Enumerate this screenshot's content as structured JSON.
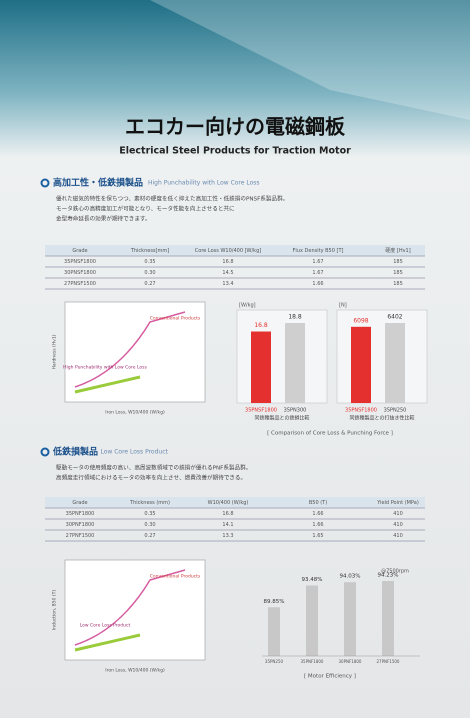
{
  "header": {
    "title": "エコカー向けの電磁鋼板",
    "subtitle": "Electrical Steel Products for Traction Motor"
  },
  "sections": [
    {
      "title": "高加工性・低鉄損製品",
      "subtitle": "High Punchability with Low Core Loss",
      "bullets": [
        "優れた磁気的特性を保ちつつ、素材の硬度を低く抑えた高加工性・低鉄損のPNSF系製品群。",
        "モータ鉄心の高精度加工が可能となり、モータ性能を向上させると共に",
        "金型寿命延長の効果が期待できます。"
      ],
      "table": {
        "header": [
          "Grade",
          "Thickness[mm]",
          "Core Loss W10/400 [W/kg]",
          "Flux Density B50 [T]",
          "硬度 [Hv1]"
        ],
        "rows": [
          [
            "35PNSF1800",
            "0.35",
            "16.8",
            "1.67",
            "185"
          ],
          [
            "30PNSF1800",
            "0.30",
            "14.5",
            "1.67",
            "185"
          ],
          [
            "27PNSF1500",
            "0.27",
            "13.4",
            "1.66",
            "185"
          ]
        ]
      },
      "plot": {
        "x_label": "Iron Loss, W10/400 (W/kg)",
        "y_label": "Hardness (Hv1)",
        "labels": [
          "Conventional Products",
          "High Punchability with Low Core Loss"
        ]
      },
      "bar_charts": [
        {
          "unit": "[W/kg]",
          "categories": [
            "35PNSF1800",
            "35PN300"
          ],
          "values": [
            16.8,
            18.8
          ],
          "colors": [
            "#e53030",
            "#cfcfcf"
          ],
          "caption": "同鉄種製品との鉄損比較"
        },
        {
          "unit": "[N]",
          "categories": [
            "35PNSF1800",
            "35PN250"
          ],
          "values": [
            6098,
            6402
          ],
          "colors": [
            "#e53030",
            "#cfcfcf"
          ],
          "caption": "同鉄種製品との打抜き性比較"
        }
      ],
      "bar_caption": "[ Comparison of Core Loss & Punching Force ]"
    },
    {
      "title": "低鉄損製品",
      "subtitle": "Low Core Loss Product",
      "bullets": [
        "駆動モータの使用頻度の高い、高周波数領域での鉄損が優れるPNF系製品群。",
        "高頻度走行領域におけるモータの効率を向上させ、燃費改善が期待できる。"
      ],
      "table": {
        "header": [
          "Grade",
          "Thickness (mm)",
          "W10/400 (W/kg)",
          "B50 (T)",
          "Yield Point (MPa)"
        ],
        "rows": [
          [
            "35PNF1800",
            "0.35",
            "16.8",
            "1.66",
            "410"
          ],
          [
            "30PNF1800",
            "0.30",
            "14.1",
            "1.66",
            "410"
          ],
          [
            "27PNF1500",
            "0.27",
            "13.3",
            "1.65",
            "410"
          ]
        ]
      },
      "plot": {
        "x_label": "Iron Loss, W10/400 (W/kg)",
        "y_label": "Induction, B50 (T)",
        "labels": [
          "Conventional Products",
          "Low Core Loss Product"
        ]
      },
      "efficiency": {
        "note": "@7500rpm",
        "categories": [
          "35PN250",
          "35PNF1800",
          "30PNF1800",
          "27PNF1500"
        ],
        "values": [
          89.85,
          93.48,
          94.03,
          94.23
        ],
        "value_labels": [
          "89.85%",
          "93.48%",
          "94.03%",
          "94.23%"
        ],
        "color": "#c8c8c8",
        "caption": "[ Motor Efficiency ]"
      }
    }
  ]
}
